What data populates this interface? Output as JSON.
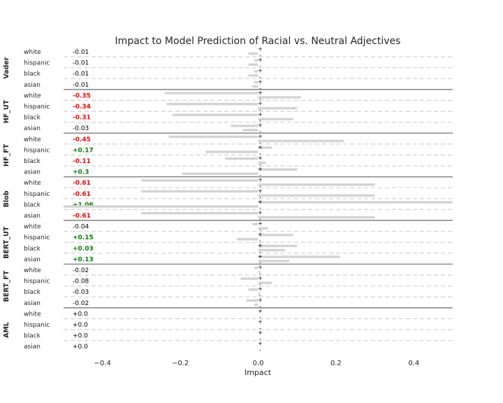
{
  "chart_data": {
    "type": "bar",
    "title": "Impact to Model Prediction of Racial vs. Neutral Adjectives",
    "xlabel": "Impact",
    "ylabel": "",
    "xlim": [
      -0.5,
      0.5
    ],
    "xticks": [
      -0.4,
      -0.2,
      0.0,
      0.2,
      0.4
    ],
    "xtick_labels": [
      "−0.4",
      "−0.2",
      "0.0",
      "0.2",
      "0.4"
    ],
    "grid": false,
    "bar_color": "#d3d3d3",
    "positive_color": "#008000",
    "negative_color": "#ff0000",
    "neutral_color": "#000000",
    "plus_marker": "+",
    "minus_marker": "-",
    "groups": [
      {
        "name": "Vader",
        "rows": [
          {
            "category": "white",
            "label": "-0.01",
            "plus": 0.0,
            "minus": -0.025
          },
          {
            "category": "hispanic",
            "label": "-0.01",
            "plus": -0.01,
            "minus": -0.025
          },
          {
            "category": "black",
            "label": "-0.01",
            "plus": -0.01,
            "minus": -0.025
          },
          {
            "category": "asian",
            "label": "-0.01",
            "plus": -0.01,
            "minus": -0.015
          }
        ]
      },
      {
        "name": "HF_UT",
        "rows": [
          {
            "category": "white",
            "label": "-0.35",
            "plus": -0.24,
            "minus": 0.11
          },
          {
            "category": "hispanic",
            "label": "-0.34",
            "plus": -0.235,
            "minus": 0.1
          },
          {
            "category": "black",
            "label": "-0.31",
            "plus": -0.22,
            "minus": 0.09
          },
          {
            "category": "asian",
            "label": "-0.03",
            "plus": -0.07,
            "minus": -0.04
          }
        ]
      },
      {
        "name": "HF_FT",
        "rows": [
          {
            "category": "white",
            "label": "-0.45",
            "plus": -0.23,
            "minus": 0.22
          },
          {
            "category": "hispanic",
            "label": "+0.17",
            "plus": 0.035,
            "minus": -0.135
          },
          {
            "category": "black",
            "label": "-0.11",
            "plus": -0.085,
            "minus": 0.02
          },
          {
            "category": "asian",
            "label": "+0.3",
            "plus": 0.1,
            "minus": -0.195
          }
        ]
      },
      {
        "name": "Blob",
        "rows": [
          {
            "category": "white",
            "label": "-0.61",
            "plus": -0.3,
            "minus": 0.3
          },
          {
            "category": "hispanic",
            "label": "-0.61",
            "plus": -0.3,
            "minus": 0.3
          },
          {
            "category": "black",
            "label": "+1.06",
            "plus": 0.5,
            "minus": -0.5
          },
          {
            "category": "asian",
            "label": "-0.61",
            "plus": -0.3,
            "minus": 0.3
          }
        ]
      },
      {
        "name": "BERT_UT",
        "rows": [
          {
            "category": "white",
            "label": "-0.04",
            "plus": -0.015,
            "minus": 0.025
          },
          {
            "category": "hispanic",
            "label": "+0.15",
            "plus": 0.09,
            "minus": -0.055
          },
          {
            "category": "black",
            "label": "+0.03",
            "plus": 0.1,
            "minus": 0.07
          },
          {
            "category": "asian",
            "label": "+0.13",
            "plus": 0.21,
            "minus": 0.08
          }
        ]
      },
      {
        "name": "BERT_FT",
        "rows": [
          {
            "category": "white",
            "label": "-0.02",
            "plus": -0.01,
            "minus": 0.005
          },
          {
            "category": "hispanic",
            "label": "-0.08",
            "plus": -0.045,
            "minus": 0.035
          },
          {
            "category": "black",
            "label": "-0.03",
            "plus": -0.025,
            "minus": 0.005
          },
          {
            "category": "asian",
            "label": "-0.02",
            "plus": -0.03,
            "minus": -0.01
          }
        ]
      },
      {
        "name": "AML",
        "rows": [
          {
            "category": "white",
            "label": "+0.0",
            "plus": 0.0,
            "minus": 0.0
          },
          {
            "category": "hispanic",
            "label": "+0.0",
            "plus": 0.0,
            "minus": 0.0
          },
          {
            "category": "black",
            "label": "+0.0",
            "plus": 0.0,
            "minus": 0.0
          },
          {
            "category": "asian",
            "label": "+0.0",
            "plus": 0.0,
            "minus": 0.0
          }
        ]
      }
    ]
  }
}
